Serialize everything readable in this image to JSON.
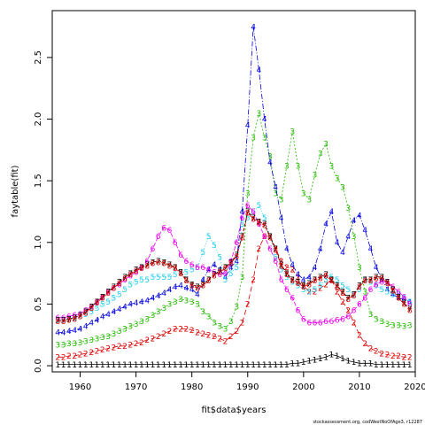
{
  "chart_data": {
    "type": "line",
    "xlabel": "fit$data$years",
    "ylabel": "faytable(fit)",
    "xlim": [
      1955,
      2020
    ],
    "ylim": [
      -0.05,
      2.88
    ],
    "x_ticks": [
      "1960",
      "1970",
      "1980",
      "1990",
      "2000",
      "2010",
      "2020"
    ],
    "y_ticks": [
      "0.0",
      "0.5",
      "1.0",
      "1.5",
      "2.0",
      "2.5"
    ],
    "x": [
      1956,
      1957,
      1958,
      1959,
      1960,
      1961,
      1962,
      1963,
      1964,
      1965,
      1966,
      1967,
      1968,
      1969,
      1970,
      1971,
      1972,
      1973,
      1974,
      1975,
      1976,
      1977,
      1978,
      1979,
      1980,
      1981,
      1982,
      1983,
      1984,
      1985,
      1986,
      1987,
      1988,
      1989,
      1990,
      1991,
      1992,
      1993,
      1994,
      1995,
      1996,
      1997,
      1998,
      1999,
      2000,
      2001,
      2002,
      2003,
      2004,
      2005,
      2006,
      2007,
      2008,
      2009,
      2010,
      2011,
      2012,
      2013,
      2014,
      2015,
      2016,
      2017,
      2018,
      2019
    ],
    "series": [
      {
        "name": "1",
        "color": "#000000",
        "dash": "none",
        "values": [
          0.01,
          0.01,
          0.01,
          0.01,
          0.01,
          0.01,
          0.01,
          0.01,
          0.01,
          0.01,
          0.01,
          0.01,
          0.01,
          0.01,
          0.01,
          0.01,
          0.01,
          0.01,
          0.01,
          0.01,
          0.01,
          0.01,
          0.01,
          0.01,
          0.01,
          0.01,
          0.01,
          0.01,
          0.01,
          0.01,
          0.01,
          0.01,
          0.01,
          0.01,
          0.01,
          0.01,
          0.01,
          0.01,
          0.01,
          0.01,
          0.01,
          0.01,
          0.02,
          0.02,
          0.03,
          0.04,
          0.05,
          0.06,
          0.07,
          0.09,
          0.08,
          0.06,
          0.04,
          0.03,
          0.02,
          0.02,
          0.02,
          0.01,
          0.01,
          0.01,
          0.01,
          0.01,
          0.01,
          0.01
        ]
      },
      {
        "name": "2",
        "color": "#df0000",
        "dash": "6,3",
        "values": [
          0.07,
          0.07,
          0.08,
          0.08,
          0.09,
          0.1,
          0.11,
          0.12,
          0.13,
          0.14,
          0.15,
          0.16,
          0.16,
          0.17,
          0.18,
          0.19,
          0.21,
          0.22,
          0.24,
          0.26,
          0.28,
          0.3,
          0.3,
          0.3,
          0.29,
          0.27,
          0.26,
          0.25,
          0.24,
          0.22,
          0.2,
          0.24,
          0.28,
          0.35,
          0.5,
          0.7,
          0.95,
          1.05,
          1.05,
          0.95,
          0.85,
          0.8,
          0.78,
          0.72,
          0.65,
          0.6,
          0.6,
          0.63,
          0.66,
          0.7,
          0.6,
          0.52,
          0.45,
          0.35,
          0.25,
          0.18,
          0.14,
          0.12,
          0.1,
          0.09,
          0.08,
          0.08,
          0.07,
          0.07
        ]
      },
      {
        "name": "3",
        "color": "#22bb00",
        "dash": "2,2",
        "values": [
          0.17,
          0.17,
          0.18,
          0.18,
          0.19,
          0.2,
          0.21,
          0.22,
          0.23,
          0.24,
          0.26,
          0.28,
          0.3,
          0.32,
          0.34,
          0.36,
          0.38,
          0.41,
          0.44,
          0.47,
          0.5,
          0.52,
          0.54,
          0.53,
          0.52,
          0.5,
          0.44,
          0.4,
          0.35,
          0.32,
          0.3,
          0.36,
          0.48,
          0.72,
          1.4,
          1.85,
          2.05,
          1.85,
          1.7,
          1.4,
          1.35,
          1.62,
          1.9,
          1.62,
          1.4,
          1.35,
          1.55,
          1.72,
          1.8,
          1.62,
          1.52,
          1.45,
          1.28,
          1.05,
          0.8,
          0.6,
          0.42,
          0.38,
          0.36,
          0.34,
          0.33,
          0.33,
          0.32,
          0.33
        ]
      },
      {
        "name": "4",
        "color": "#0000dd",
        "dash": "6,2,1,2",
        "values": [
          0.27,
          0.27,
          0.28,
          0.29,
          0.3,
          0.32,
          0.35,
          0.37,
          0.4,
          0.42,
          0.44,
          0.46,
          0.48,
          0.5,
          0.51,
          0.52,
          0.53,
          0.55,
          0.57,
          0.59,
          0.62,
          0.64,
          0.65,
          0.63,
          0.62,
          0.58,
          0.7,
          0.78,
          0.82,
          0.78,
          0.72,
          0.8,
          0.85,
          1.25,
          1.95,
          2.75,
          2.4,
          2.0,
          1.65,
          1.45,
          1.2,
          0.95,
          0.82,
          0.74,
          0.7,
          0.72,
          0.8,
          0.95,
          1.15,
          1.25,
          1.0,
          0.92,
          1.05,
          1.18,
          1.22,
          1.1,
          0.95,
          0.8,
          0.7,
          0.62,
          0.58,
          0.55,
          0.54,
          0.52
        ]
      },
      {
        "name": "5",
        "color": "#22ccee",
        "dash": "1,2",
        "values": [
          0.37,
          0.37,
          0.38,
          0.39,
          0.4,
          0.42,
          0.44,
          0.47,
          0.5,
          0.52,
          0.55,
          0.58,
          0.62,
          0.66,
          0.68,
          0.7,
          0.7,
          0.72,
          0.72,
          0.72,
          0.72,
          0.74,
          0.76,
          0.76,
          0.78,
          0.8,
          0.92,
          1.05,
          0.98,
          0.88,
          0.7,
          0.75,
          0.8,
          1.15,
          1.2,
          1.25,
          1.3,
          1.2,
          1.05,
          0.88,
          0.78,
          0.72,
          0.68,
          0.65,
          0.62,
          0.6,
          0.62,
          0.65,
          0.7,
          0.72,
          0.7,
          0.65,
          0.62,
          0.58,
          0.62,
          0.7,
          0.68,
          0.65,
          0.62,
          0.6,
          0.58,
          0.58,
          0.55,
          0.52
        ]
      },
      {
        "name": "6",
        "color": "#ee00ee",
        "dash": "5,2",
        "values": [
          0.39,
          0.39,
          0.4,
          0.41,
          0.42,
          0.45,
          0.48,
          0.52,
          0.56,
          0.6,
          0.63,
          0.66,
          0.7,
          0.73,
          0.76,
          0.8,
          0.85,
          0.95,
          1.05,
          1.12,
          1.1,
          1.0,
          0.9,
          0.85,
          0.82,
          0.8,
          0.8,
          0.78,
          0.76,
          0.74,
          0.75,
          0.85,
          1.0,
          1.2,
          1.3,
          1.25,
          1.15,
          1.05,
          0.95,
          0.85,
          0.7,
          0.62,
          0.55,
          0.45,
          0.38,
          0.35,
          0.35,
          0.35,
          0.36,
          0.36,
          0.37,
          0.38,
          0.4,
          0.45,
          0.5,
          0.55,
          0.62,
          0.66,
          0.68,
          0.68,
          0.64,
          0.6,
          0.56,
          0.5
        ]
      },
      {
        "name": "7",
        "color": "#000000",
        "dash": "3,2",
        "values": [
          0.37,
          0.37,
          0.38,
          0.39,
          0.41,
          0.44,
          0.48,
          0.52,
          0.56,
          0.6,
          0.64,
          0.68,
          0.72,
          0.75,
          0.78,
          0.8,
          0.82,
          0.84,
          0.85,
          0.84,
          0.82,
          0.8,
          0.76,
          0.7,
          0.66,
          0.64,
          0.66,
          0.7,
          0.74,
          0.77,
          0.8,
          0.84,
          0.9,
          1.05,
          1.25,
          1.2,
          1.17,
          1.15,
          1.05,
          0.95,
          0.82,
          0.75,
          0.7,
          0.68,
          0.65,
          0.67,
          0.7,
          0.72,
          0.74,
          0.7,
          0.65,
          0.6,
          0.55,
          0.58,
          0.65,
          0.7,
          0.7,
          0.72,
          0.72,
          0.68,
          0.62,
          0.56,
          0.51,
          0.46
        ]
      },
      {
        "name": "8",
        "color": "#df0000",
        "dash": "4,2",
        "values": [
          0.36,
          0.36,
          0.37,
          0.38,
          0.4,
          0.43,
          0.47,
          0.51,
          0.55,
          0.59,
          0.63,
          0.67,
          0.71,
          0.74,
          0.77,
          0.79,
          0.81,
          0.83,
          0.84,
          0.83,
          0.81,
          0.79,
          0.75,
          0.69,
          0.65,
          0.63,
          0.65,
          0.69,
          0.73,
          0.76,
          0.79,
          0.83,
          0.89,
          1.04,
          1.24,
          1.19,
          1.16,
          1.14,
          1.04,
          0.94,
          0.81,
          0.74,
          0.69,
          0.67,
          0.64,
          0.66,
          0.69,
          0.71,
          0.73,
          0.69,
          0.64,
          0.59,
          0.54,
          0.57,
          0.64,
          0.69,
          0.69,
          0.71,
          0.71,
          0.67,
          0.61,
          0.55,
          0.5,
          0.45
        ]
      }
    ]
  },
  "credit": "stockassessment.org, codWestNoOfAge3, r12287"
}
